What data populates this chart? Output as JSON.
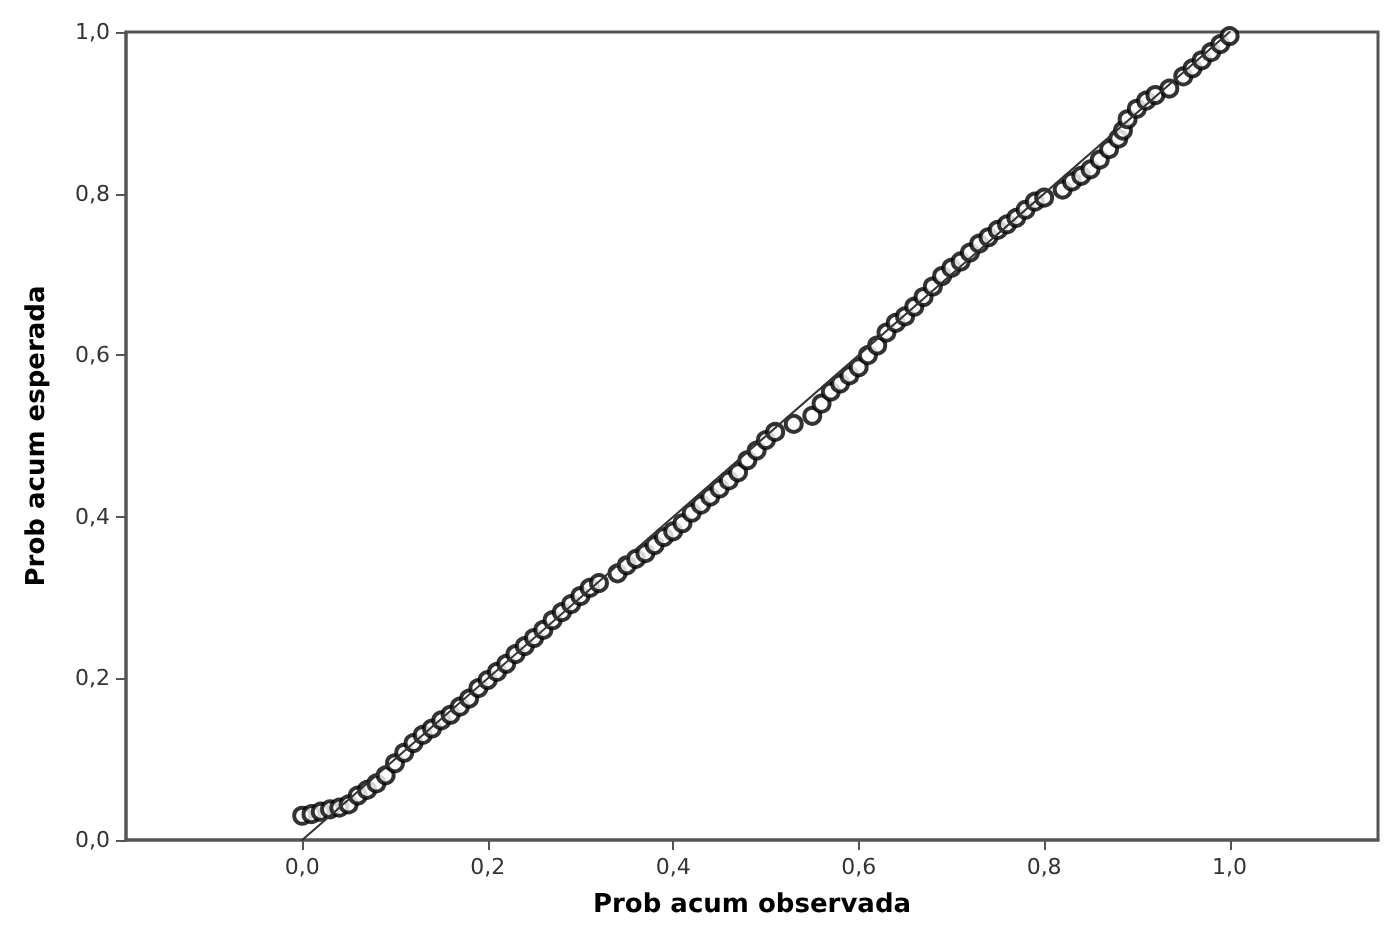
{
  "chart_data": {
    "type": "scatter",
    "xlabel": "Prob acum observada",
    "ylabel": "Prob acum esperada",
    "xlim": [
      -0.19,
      1.16
    ],
    "ylim": [
      0,
      1
    ],
    "xticks": [
      {
        "value": 0,
        "label": "0,0"
      },
      {
        "value": 0.2,
        "label": "0,2"
      },
      {
        "value": 0.4,
        "label": "0,4"
      },
      {
        "value": 0.6,
        "label": "0,6"
      },
      {
        "value": 0.8,
        "label": "0,8"
      },
      {
        "value": 1,
        "label": "1,0"
      }
    ],
    "yticks": [
      {
        "value": 0,
        "label": "0,0"
      },
      {
        "value": 0.2,
        "label": "0,2"
      },
      {
        "value": 0.4,
        "label": "0,4"
      },
      {
        "value": 0.6,
        "label": "0,6"
      },
      {
        "value": 0.8,
        "label": "0,8"
      },
      {
        "value": 1,
        "label": "1,0"
      }
    ],
    "grid": false,
    "marker": "circle",
    "series": [
      {
        "color": "#000000",
        "x": [
          0.0,
          0.01,
          0.02,
          0.03,
          0.04,
          0.05,
          0.06,
          0.07,
          0.08,
          0.09,
          0.1,
          0.11,
          0.12,
          0.13,
          0.14,
          0.15,
          0.16,
          0.17,
          0.18,
          0.19,
          0.2,
          0.21,
          0.22,
          0.23,
          0.24,
          0.25,
          0.26,
          0.27,
          0.28,
          0.29,
          0.3,
          0.31,
          0.32,
          0.34,
          0.35,
          0.36,
          0.37,
          0.38,
          0.39,
          0.4,
          0.41,
          0.42,
          0.43,
          0.44,
          0.45,
          0.46,
          0.47,
          0.48,
          0.49,
          0.5,
          0.51,
          0.53,
          0.55,
          0.56,
          0.57,
          0.58,
          0.59,
          0.6,
          0.61,
          0.62,
          0.63,
          0.64,
          0.65,
          0.66,
          0.67,
          0.68,
          0.69,
          0.7,
          0.71,
          0.72,
          0.73,
          0.74,
          0.75,
          0.76,
          0.77,
          0.78,
          0.79,
          0.8,
          0.82,
          0.83,
          0.84,
          0.85,
          0.86,
          0.87,
          0.88,
          0.885,
          0.89,
          0.9,
          0.91,
          0.92,
          0.935,
          0.95,
          0.96,
          0.97,
          0.98,
          0.99,
          1.0
        ],
        "values": [
          0.03,
          0.032,
          0.035,
          0.038,
          0.04,
          0.044,
          0.055,
          0.062,
          0.07,
          0.08,
          0.095,
          0.108,
          0.12,
          0.13,
          0.138,
          0.148,
          0.155,
          0.165,
          0.175,
          0.188,
          0.198,
          0.208,
          0.218,
          0.23,
          0.24,
          0.25,
          0.26,
          0.272,
          0.282,
          0.292,
          0.302,
          0.312,
          0.318,
          0.33,
          0.34,
          0.348,
          0.355,
          0.365,
          0.375,
          0.382,
          0.392,
          0.405,
          0.415,
          0.425,
          0.435,
          0.445,
          0.455,
          0.47,
          0.482,
          0.495,
          0.505,
          0.515,
          0.525,
          0.54,
          0.555,
          0.565,
          0.575,
          0.585,
          0.6,
          0.612,
          0.628,
          0.64,
          0.648,
          0.66,
          0.672,
          0.685,
          0.698,
          0.708,
          0.716,
          0.727,
          0.738,
          0.746,
          0.755,
          0.762,
          0.77,
          0.78,
          0.79,
          0.795,
          0.805,
          0.815,
          0.822,
          0.83,
          0.842,
          0.855,
          0.868,
          0.878,
          0.892,
          0.905,
          0.915,
          0.922,
          0.93,
          0.945,
          0.955,
          0.965,
          0.975,
          0.985,
          0.995
        ]
      },
      {
        "type": "line",
        "color": "#333333",
        "marker": "none",
        "x": [
          0,
          1
        ],
        "values": [
          0,
          1
        ]
      }
    ]
  }
}
